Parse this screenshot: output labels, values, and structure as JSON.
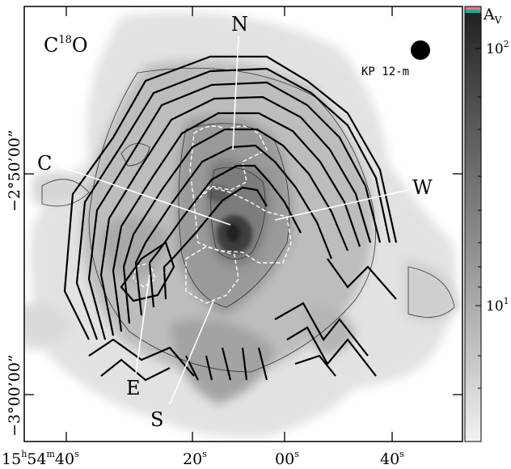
{
  "figure": {
    "molecule_label": "C",
    "molecule_isotope": "18",
    "molecule_suffix": "O",
    "beam_label": "KP 12-m",
    "colorbar": {
      "title": "A",
      "title_sub": "V",
      "ticks": [
        {
          "base": "10",
          "exp": "2",
          "value": 100
        },
        {
          "base": "10",
          "exp": "1",
          "value": 10
        }
      ]
    },
    "regions": [
      "N",
      "C",
      "W",
      "E",
      "S"
    ],
    "axes": {
      "y_ticks": [
        "−2°50’00”",
        "−3°00’00”"
      ],
      "x_tick_first": {
        "h": "15",
        "hs": "h",
        "m": "54",
        "ms": "m",
        "s": "40",
        "ss": "s"
      },
      "x_ticks": [
        {
          "v": "20",
          "s": "s"
        },
        {
          "v": "00",
          "s": "s"
        },
        {
          "v": "40",
          "s": "s"
        }
      ]
    }
  }
}
